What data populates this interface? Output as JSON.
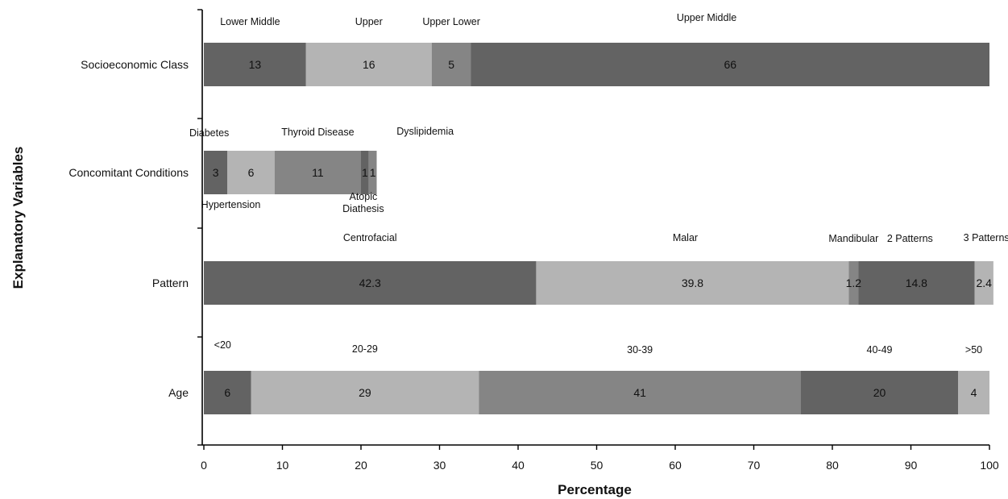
{
  "chart_data": {
    "type": "bar",
    "orientation": "horizontal",
    "stacked": true,
    "xlabel": "Percentage",
    "ylabel": "Explanatory Variables",
    "xlim": [
      0,
      100
    ],
    "xticks": [
      "0",
      "10",
      "20",
      "30",
      "40",
      "50",
      "60",
      "70",
      "80",
      "90",
      "100"
    ],
    "grid": false,
    "legend": "none",
    "colors": {
      "dark": "#636363",
      "light": "#b4b4b4",
      "mid": "#858585",
      "axis": "#000000"
    },
    "rows": [
      {
        "category": "Socioeconomic Class",
        "segments": [
          {
            "label": "Lower Middle",
            "value": 13,
            "value_text": "13",
            "shade": "dark"
          },
          {
            "label": "Upper",
            "value": 16,
            "value_text": "16",
            "shade": "light"
          },
          {
            "label": "Upper Lower",
            "value": 5,
            "value_text": "5",
            "shade": "mid"
          },
          {
            "label": "Upper Middle",
            "value": 66,
            "value_text": "66",
            "shade": "dark"
          }
        ]
      },
      {
        "category": "Concomitant Conditions",
        "segments": [
          {
            "label": "Diabetes",
            "value": 3,
            "value_text": "3",
            "shade": "dark"
          },
          {
            "label": "Hypertension",
            "value": 6,
            "value_text": "6",
            "shade": "light"
          },
          {
            "label": "Thyroid Disease",
            "value": 11,
            "value_text": "11",
            "shade": "mid"
          },
          {
            "label": "Atopic Diathesis",
            "value": 1,
            "value_text": "1",
            "shade": "dark"
          },
          {
            "label": "Dyslipidemia",
            "value": 1,
            "value_text": "1",
            "shade": "mid"
          }
        ]
      },
      {
        "category": "Pattern",
        "segments": [
          {
            "label": "Centrofacial",
            "value": 42.3,
            "value_text": "42.3",
            "shade": "dark"
          },
          {
            "label": "Malar",
            "value": 39.8,
            "value_text": "39.8",
            "shade": "light"
          },
          {
            "label": "Mandibular",
            "value": 1.2,
            "value_text": "1.2",
            "shade": "mid"
          },
          {
            "label": "2 Patterns",
            "value": 14.8,
            "value_text": "14.8",
            "shade": "dark"
          },
          {
            "label": "3 Patterns",
            "value": 2.4,
            "value_text": "2.4",
            "shade": "light"
          }
        ]
      },
      {
        "category": "Age",
        "segments": [
          {
            "label": "<20",
            "value": 6,
            "value_text": "6",
            "shade": "dark"
          },
          {
            "label": "20-29",
            "value": 29,
            "value_text": "29",
            "shade": "light"
          },
          {
            "label": "30-39",
            "value": 41,
            "value_text": "41",
            "shade": "mid"
          },
          {
            "label": "40-49",
            "value": 20,
            "value_text": "20",
            "shade": "dark"
          },
          {
            "label": ">50",
            "value": 4,
            "value_text": "4",
            "shade": "light"
          }
        ]
      }
    ]
  }
}
